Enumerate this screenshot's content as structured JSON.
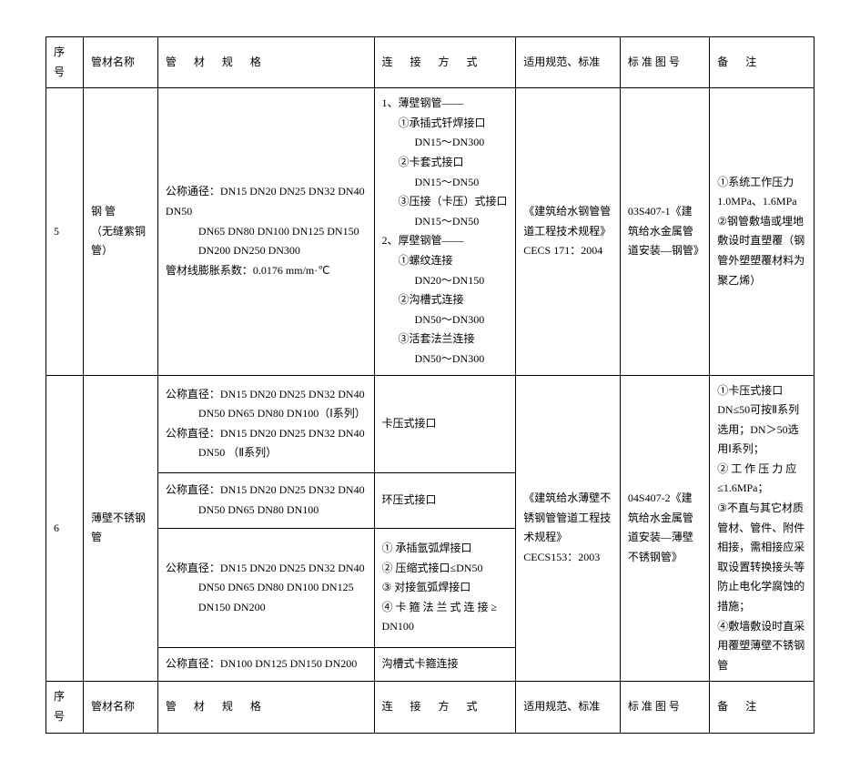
{
  "headers": {
    "num": "序号",
    "name": "管材名称",
    "spec": "管 材 规 格",
    "conn": "连 接 方 式",
    "std": "适用规范、标准",
    "fig": "标 准 图 号",
    "note": "备 注"
  },
  "row5": {
    "num": "5",
    "name_l1": "钢 管",
    "name_l2": "（无缝紫铜管）",
    "spec_l1": "公称通径：DN15 DN20 DN25 DN32 DN40 DN50",
    "spec_l2": "DN65 DN80 DN100 DN125 DN150",
    "spec_l3": "DN200 DN250 DN300",
    "spec_l4": "管材线膨胀系数：0.0176 mm/m·℃",
    "conn_h1": "1、薄壁钢管——",
    "conn_a1": "①承插式钎焊接口",
    "conn_a1d": "DN15～DN300",
    "conn_a2": "②卡套式接口",
    "conn_a2d": "DN15～DN50",
    "conn_a3": "③压接（卡压）式接口",
    "conn_a3d": "DN15～DN50",
    "conn_h2": "2、厚壁钢管——",
    "conn_b1": "①螺纹连接",
    "conn_b1d": "DN20～DN150",
    "conn_b2": "②沟槽式连接",
    "conn_b2d": "DN50～DN300",
    "conn_b3": "③活套法兰连接",
    "conn_b3d": "DN50～DN300",
    "std_l1": "《建筑给水钢管管道工程技术规程》",
    "std_l2": "CECS 171：2004",
    "fig_l1": "03S407-1《建筑给水金属管道安装—钢管》",
    "note_l1": "①系统工作压力1.0MPa、1.6MPa",
    "note_l2": "②钢管敷墙或埋地敷设时直塑覆（钢管外塑塑覆材料为聚乙烯）"
  },
  "row6": {
    "num": "6",
    "name": "薄壁不锈钢管",
    "spec_a_l1": "公称直径：DN15 DN20 DN25 DN32 DN40",
    "spec_a_l2": "DN50 DN65 DN80 DN100（Ⅰ系列）",
    "spec_a_l3": "公称直径：DN15 DN20 DN25 DN32 DN40",
    "spec_a_l4": "DN50 （Ⅱ系列）",
    "conn_a": "卡压式接口",
    "spec_b_l1": "公称直径：DN15 DN20 DN25 DN32 DN40",
    "spec_b_l2": "DN50 DN65 DN80 DN100",
    "conn_b": "环压式接口",
    "spec_c_l1": "公称直径：DN15 DN20 DN25 DN32 DN40",
    "spec_c_l2": "DN50 DN65 DN80 DN100 DN125",
    "spec_c_l3": "DN150 DN200",
    "conn_c_l1": "① 承插氩弧焊接口",
    "conn_c_l2": "② 压缩式接口≤DN50",
    "conn_c_l3": "③ 对接氩弧焊接口",
    "conn_c_l4": "④ 卡 箍 法 兰 式 连 接 ≥",
    "conn_c_l5": "DN100",
    "spec_d_l1": "公称直径：DN100 DN125 DN150 DN200",
    "conn_d": "沟槽式卡箍连接",
    "std_l1": "《建筑给水薄壁不锈钢管管道工程技术规程》",
    "std_l2": "CECS153：2003",
    "fig_l1": "04S407-2《建筑给水金属管道安装—薄壁不锈钢管》",
    "note_l1": "①卡压式接口 DN≤50可按Ⅱ系列选用；DN＞50选用Ⅰ系列；",
    "note_l2": "② 工 作 压 力 应 ≤1.6MPa；",
    "note_l3": "③不直与其它材质管材、管件、附件相接，需相接应采取设置转换接头等防止电化学腐蚀的措施；",
    "note_l4": "④敷墙敷设时直采用覆塑薄壁不锈钢管"
  }
}
